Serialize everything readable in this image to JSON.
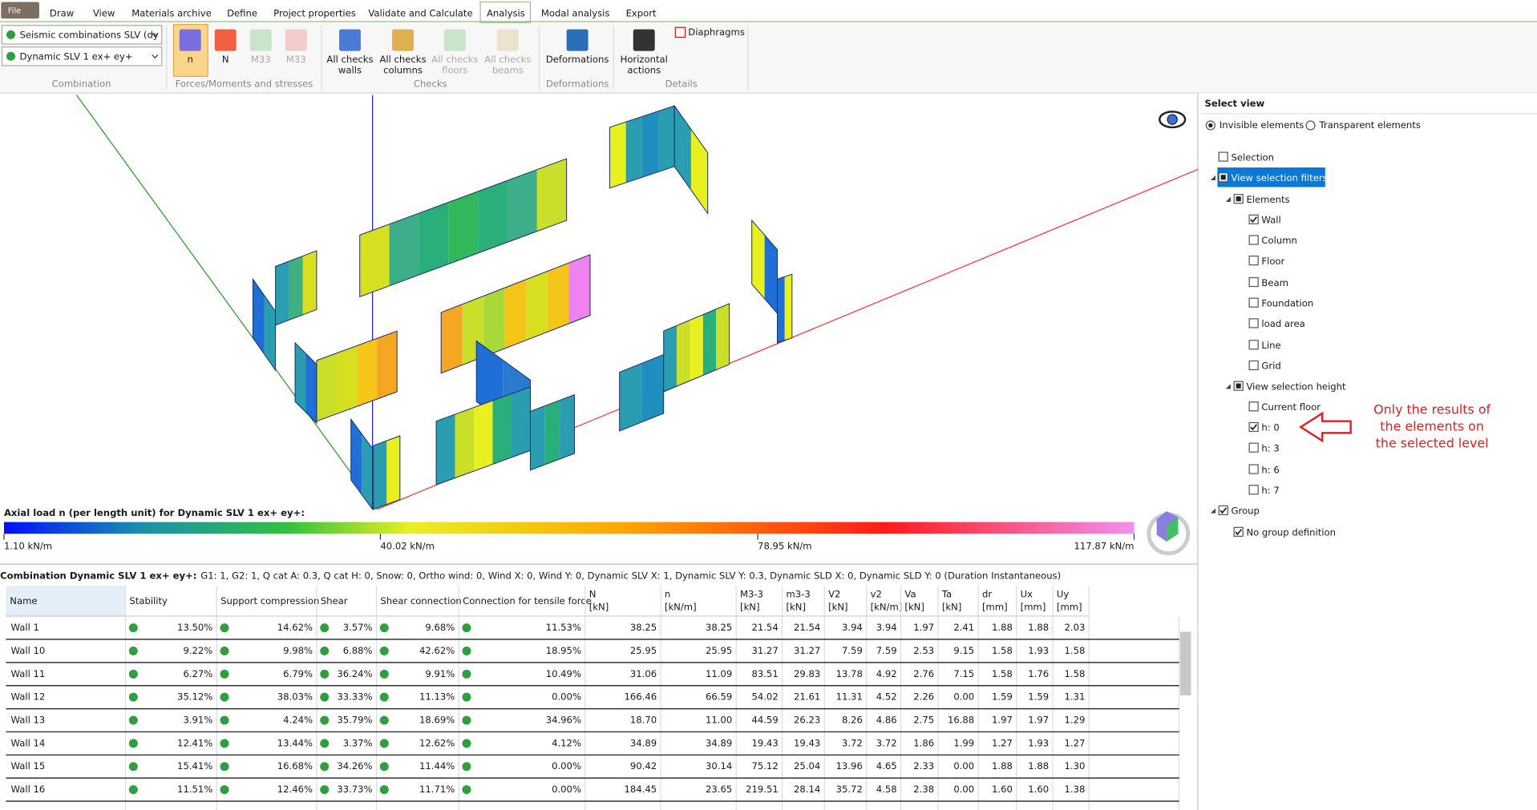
{
  "menu": {
    "file": "File",
    "tabs": [
      "Draw",
      "View",
      "Materials archive",
      "Define",
      "Project properties",
      "Validate and Calculate",
      "Analysis",
      "Modal analysis",
      "Export"
    ],
    "active": 6
  },
  "ribbon": {
    "combos": [
      "Seismic combinations SLV (dy",
      "Dynamic SLV 1 ex+ ey+"
    ],
    "buttons": [
      {
        "label": [
          "n"
        ],
        "enabled": true,
        "selected": true
      },
      {
        "label": [
          "N"
        ],
        "enabled": true
      },
      {
        "label": [
          "M33"
        ],
        "enabled": false
      },
      {
        "label": [
          "M33"
        ],
        "enabled": false
      },
      {
        "label": [
          "All checks",
          "walls"
        ],
        "enabled": true
      },
      {
        "label": [
          "All checks",
          "columns"
        ],
        "enabled": true
      },
      {
        "label": [
          "All checks",
          "floors"
        ],
        "enabled": false
      },
      {
        "label": [
          "All checks",
          "beams"
        ],
        "enabled": false
      },
      {
        "label": [
          "Deformations"
        ],
        "enabled": true
      },
      {
        "label": [
          "Horizontal",
          "actions"
        ],
        "enabled": true
      }
    ],
    "diaphragms": "Diaphragms",
    "groups": [
      "Combination",
      "Forces/Moments and stresses",
      "Checks",
      "Deformations",
      "Details"
    ]
  },
  "legend": {
    "title": "Axial load n (per length unit) for Dynamic SLV 1 ex+ ey+:",
    "labels": [
      "1.10 kN/m",
      "40.02 kN/m",
      "78.95 kN/m",
      "117.87 kN/m"
    ]
  },
  "combination": {
    "name": "Combination Dynamic SLV 1 ex+ ey+:",
    "details": "G1: 1, G2: 1, Q cat A: 0.3, Q cat H: 0, Snow: 0, Ortho wind: 0, Wind X: 0, Wind Y: 0, Dynamic SLV X: 1, Dynamic SLV Y: 0.3, Dynamic SLD X: 0, Dynamic SLD Y: 0 (Duration Instantaneous)"
  },
  "table": {
    "headers": [
      [
        "Name"
      ],
      [
        "Stability"
      ],
      [
        "Support compression"
      ],
      [
        "Shear"
      ],
      [
        "Shear connection"
      ],
      [
        "Connection for tensile force"
      ],
      [
        "N",
        "[kN]"
      ],
      [
        "n",
        "[kN/m]"
      ],
      [
        "M3-3",
        "[kN]"
      ],
      [
        "m3-3",
        "[kN]"
      ],
      [
        "V2",
        "[kN]"
      ],
      [
        "v2",
        "[kN/m]"
      ],
      [
        "Va",
        "[kN]"
      ],
      [
        "Ta",
        "[kN]"
      ],
      [
        "dr",
        "[mm]"
      ],
      [
        "Ux",
        "[mm]"
      ],
      [
        "Uy",
        "[mm]"
      ]
    ],
    "rows": [
      [
        "Wall 1",
        "13.50%",
        "14.62%",
        "3.57%",
        "9.68%",
        "11.53%",
        "38.25",
        "38.25",
        "21.54",
        "21.54",
        "3.94",
        "3.94",
        "1.97",
        "2.41",
        "1.88",
        "1.88",
        "2.03"
      ],
      [
        "Wall 10",
        "9.22%",
        "9.98%",
        "6.88%",
        "42.62%",
        "18.95%",
        "25.95",
        "25.95",
        "31.27",
        "31.27",
        "7.59",
        "7.59",
        "2.53",
        "9.15",
        "1.58",
        "1.93",
        "1.58"
      ],
      [
        "Wall 11",
        "6.27%",
        "6.79%",
        "36.24%",
        "9.91%",
        "10.49%",
        "31.06",
        "11.09",
        "83.51",
        "29.83",
        "13.78",
        "4.92",
        "2.76",
        "7.15",
        "1.58",
        "1.76",
        "1.58"
      ],
      [
        "Wall 12",
        "35.12%",
        "38.03%",
        "33.33%",
        "11.13%",
        "0.00%",
        "166.46",
        "66.59",
        "54.02",
        "21.61",
        "11.31",
        "4.52",
        "2.26",
        "0.00",
        "1.59",
        "1.59",
        "1.31"
      ],
      [
        "Wall 13",
        "3.91%",
        "4.24%",
        "35.79%",
        "18.69%",
        "34.96%",
        "18.70",
        "11.00",
        "44.59",
        "26.23",
        "8.26",
        "4.86",
        "2.75",
        "16.88",
        "1.97",
        "1.97",
        "1.29"
      ],
      [
        "Wall 14",
        "12.41%",
        "13.44%",
        "3.37%",
        "12.62%",
        "4.12%",
        "34.89",
        "34.89",
        "19.43",
        "19.43",
        "3.72",
        "3.72",
        "1.86",
        "1.99",
        "1.27",
        "1.93",
        "1.27"
      ],
      [
        "Wall 15",
        "15.41%",
        "16.68%",
        "34.26%",
        "11.44%",
        "0.00%",
        "90.42",
        "30.14",
        "75.12",
        "25.04",
        "13.96",
        "4.65",
        "2.33",
        "0.00",
        "1.88",
        "1.88",
        "1.30"
      ],
      [
        "Wall 16",
        "11.51%",
        "12.46%",
        "33.73%",
        "11.71%",
        "0.00%",
        "184.45",
        "23.65",
        "219.51",
        "28.14",
        "35.72",
        "4.58",
        "2.38",
        "0.00",
        "1.60",
        "1.60",
        "1.38"
      ]
    ]
  },
  "select_view": {
    "title": "Select view",
    "modes": [
      "Invisible elements",
      "Transparent elements"
    ],
    "mode": 0,
    "items": [
      {
        "label": "Selection",
        "state": "unchecked"
      },
      {
        "label": "View selection filters",
        "state": "partial",
        "selected": true
      },
      {
        "label": "Elements",
        "state": "partial"
      },
      {
        "label": "Wall",
        "state": "checked"
      },
      {
        "label": "Column",
        "state": "unchecked"
      },
      {
        "label": "Floor",
        "state": "unchecked"
      },
      {
        "label": "Beam",
        "state": "unchecked"
      },
      {
        "label": "Foundation",
        "state": "unchecked"
      },
      {
        "label": "load area",
        "state": "unchecked"
      },
      {
        "label": "Line",
        "state": "unchecked"
      },
      {
        "label": "Grid",
        "state": "unchecked"
      },
      {
        "label": "View selection height",
        "state": "partial"
      },
      {
        "label": "Current floor",
        "state": "unchecked"
      },
      {
        "label": "h: 0",
        "state": "checked"
      },
      {
        "label": "h: 3",
        "state": "unchecked"
      },
      {
        "label": "h: 6",
        "state": "unchecked"
      },
      {
        "label": "h: 7",
        "state": "unchecked"
      },
      {
        "label": "Group",
        "state": "checked"
      },
      {
        "label": "No group definition",
        "state": "checked"
      }
    ]
  },
  "annotation": [
    "Only the results of",
    "the elements on",
    "the selected level"
  ]
}
